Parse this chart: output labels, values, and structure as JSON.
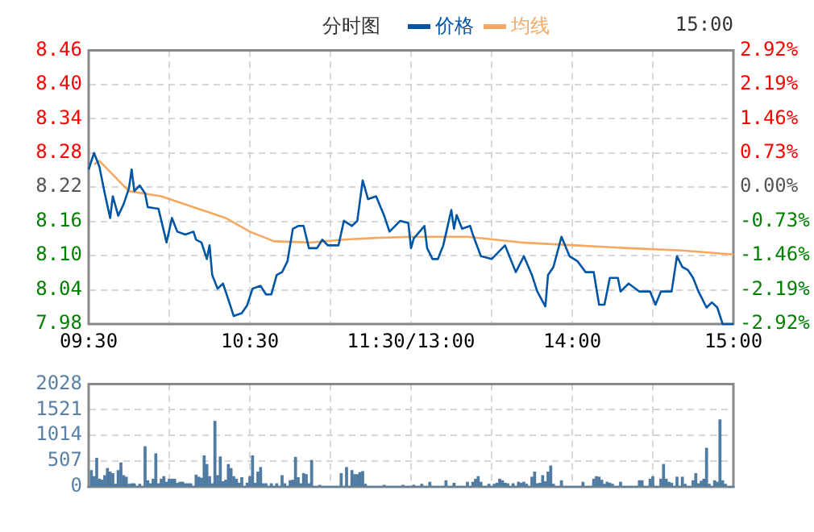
{
  "chart_data": [
    {
      "type": "line",
      "title": "分时图",
      "annotations": [
        "15:00"
      ],
      "legend": "top",
      "grid": true,
      "marker": "none",
      "line_style": "solid",
      "categories": [
        "09:30",
        null,
        null,
        null,
        null,
        null,
        null,
        null,
        null,
        null,
        null,
        null,
        null,
        null,
        null,
        null,
        null,
        null,
        null,
        null,
        null,
        null,
        null,
        null,
        null,
        null,
        null,
        null,
        null,
        null,
        null,
        null,
        null,
        null,
        null,
        null,
        null,
        null,
        null,
        null,
        null,
        null,
        null,
        null,
        null,
        null,
        null,
        null,
        null,
        null,
        null,
        null,
        null,
        null,
        null,
        null,
        null,
        null,
        null,
        null,
        "10:30",
        null,
        null,
        null,
        null,
        null,
        null,
        null,
        null,
        null,
        null,
        null,
        null,
        null,
        null,
        null,
        null,
        null,
        null,
        null,
        null,
        null,
        null,
        null,
        null,
        null,
        null,
        null,
        null,
        null,
        null,
        null,
        null,
        null,
        null,
        null,
        null,
        null,
        null,
        null,
        null,
        null,
        null,
        null,
        null,
        null,
        null,
        null,
        null,
        null,
        null,
        null,
        null,
        null,
        null,
        null,
        null,
        null,
        null,
        null,
        "11:30/13:00",
        null,
        null,
        null,
        null,
        null,
        null,
        null,
        null,
        null,
        null,
        null,
        null,
        null,
        null,
        null,
        null,
        null,
        null,
        null,
        null,
        null,
        null,
        null,
        null,
        null,
        null,
        null,
        null,
        null,
        null,
        null,
        null,
        null,
        null,
        null,
        null,
        null,
        null,
        null,
        null,
        null,
        null,
        null,
        null,
        null,
        null,
        null,
        null,
        null,
        null,
        null,
        null,
        null,
        null,
        null,
        null,
        null,
        null,
        null,
        "14:00",
        null,
        null,
        null,
        null,
        null,
        null,
        null,
        null,
        null,
        null,
        null,
        null,
        null,
        null,
        null,
        null,
        null,
        null,
        null,
        null,
        null,
        null,
        null,
        null,
        null,
        null,
        null,
        null,
        null,
        null,
        null,
        null,
        null,
        null,
        null,
        null,
        null,
        null,
        null,
        null,
        null,
        null,
        null,
        null,
        null,
        null,
        null,
        null,
        null,
        null,
        null,
        null,
        null,
        null,
        null,
        null,
        null,
        null,
        null,
        "15:00"
      ],
      "ylim": [
        7.98,
        8.46
      ],
      "yticks": [
        7.98,
        8.04,
        {
          "value": 8.1,
          "label": "8.10"
        },
        8.16,
        8.22,
        8.28,
        8.34,
        {
          "value": 8.4,
          "label": "8.40"
        },
        8.46
      ],
      "y2lim": [
        -2.92,
        2.92
      ],
      "y2ticks": [
        {
          "value": -2.92,
          "label": "-2.92%"
        },
        {
          "value": -2.19,
          "label": "-2.19%"
        },
        {
          "value": -1.46,
          "label": "-1.46%"
        },
        {
          "value": -0.73,
          "label": "-0.73%"
        },
        {
          "value": 0,
          "label": "0.00%"
        },
        {
          "value": 0.73,
          "label": "0.73%"
        },
        {
          "value": 1.46,
          "label": "1.46%"
        },
        {
          "value": 2.19,
          "label": "2.19%"
        },
        {
          "value": 2.92,
          "label": "2.92%"
        }
      ],
      "series": [
        {
          "name": "价格",
          "color": "#0055a5",
          "values": [
            8.251,
            null,
            8.28,
            null,
            8.256,
            null,
            8.209,
            null,
            8.166,
            8.204,
            null,
            8.17,
            null,
            8.19,
            null,
            8.218,
            8.251,
            8.213,
            null,
            8.223,
            null,
            8.209,
            8.185,
            null,
            null,
            null,
            8.182,
            null,
            null,
            8.123,
            null,
            8.166,
            null,
            8.142,
            null,
            null,
            8.137,
            null,
            null,
            8.142,
            8.128,
            null,
            8.123,
            null,
            8.094,
            8.118,
            8.066,
            null,
            8.042,
            null,
            8.051,
            null,
            8.023,
            null,
            7.994,
            null,
            null,
            7.999,
            null,
            8.013,
            null,
            8.042,
            null,
            null,
            8.047,
            null,
            8.032,
            null,
            8.032,
            null,
            8.066,
            null,
            8.071,
            null,
            8.09,
            null,
            8.147,
            null,
            8.152,
            null,
            8.152,
            null,
            8.113,
            null,
            null,
            8.113,
            null,
            8.128,
            null,
            8.118,
            null,
            null,
            null,
            8.118,
            null,
            8.161,
            null,
            null,
            8.152,
            null,
            8.161,
            null,
            8.232,
            null,
            8.199,
            null,
            null,
            8.204,
            null,
            null,
            8.17,
            null,
            8.142,
            null,
            null,
            null,
            8.161,
            null,
            null,
            8.157,
            8.113,
            8.13,
            null,
            null,
            null,
            8.152,
            8.113,
            null,
            8.094,
            null,
            8.094,
            null,
            8.118,
            null,
            null,
            8.18,
            8.147,
            8.171,
            null,
            8.147,
            null,
            null,
            8.152,
            8.137,
            null,
            null,
            8.099,
            null,
            null,
            null,
            8.094,
            null,
            null,
            null,
            null,
            8.118,
            null,
            null,
            null,
            8.071,
            null,
            null,
            8.099,
            null,
            null,
            8.066,
            null,
            8.037,
            null,
            null,
            8.011,
            8.066,
            null,
            8.08,
            null,
            null,
            8.133,
            null,
            null,
            8.099,
            null,
            null,
            8.09,
            null,
            null,
            8.071,
            null,
            null,
            8.071,
            null,
            8.014,
            null,
            8.014,
            null,
            8.061,
            null,
            null,
            8.061,
            8.037,
            null,
            null,
            8.051,
            null,
            null,
            null,
            8.037,
            null,
            null,
            null,
            8.037,
            null,
            8.014,
            null,
            8.037,
            null,
            null,
            null,
            8.037,
            null,
            8.099,
            null,
            8.08,
            null,
            8.075,
            null,
            8.061,
            null,
            8.037,
            null,
            null,
            8.009,
            null,
            8.018,
            null,
            8.009,
            null,
            7.98,
            null,
            null,
            null,
            7.98
          ]
        },
        {
          "name": "均线",
          "color": "#f5a860",
          "values": [
            null,
            null,
            8.26,
            null,
            8.266,
            null,
            null,
            null,
            null,
            null,
            null,
            null,
            null,
            null,
            null,
            8.213,
            null,
            null,
            null,
            null,
            null,
            null,
            null,
            null,
            null,
            null,
            null,
            8.204,
            null,
            null,
            null,
            null,
            null,
            null,
            null,
            null,
            null,
            null,
            null,
            8.185,
            null,
            null,
            null,
            null,
            null,
            null,
            null,
            null,
            null,
            null,
            null,
            8.166,
            null,
            null,
            null,
            null,
            null,
            null,
            null,
            null,
            8.142,
            null,
            null,
            null,
            null,
            null,
            null,
            null,
            null,
            8.125,
            null,
            null,
            null,
            null,
            null,
            null,
            null,
            null,
            null,
            null,
            null,
            null,
            null,
            8.123,
            null,
            null,
            null,
            null,
            null,
            null,
            null,
            null,
            null,
            null,
            null,
            8.128,
            null,
            null,
            null,
            null,
            null,
            null,
            null,
            null,
            null,
            null,
            null,
            8.131,
            null,
            null,
            null,
            null,
            null,
            null,
            null,
            null,
            null,
            null,
            null,
            null,
            8.133,
            null,
            null,
            null,
            null,
            null,
            null,
            null,
            null,
            null,
            null,
            null,
            null,
            null,
            null,
            null,
            null,
            null,
            null,
            null,
            null,
            8.133,
            null,
            null,
            null,
            null,
            null,
            null,
            null,
            null,
            null,
            null,
            null,
            null,
            null,
            null,
            null,
            null,
            null,
            null,
            null,
            8.123,
            null,
            null,
            null,
            null,
            null,
            null,
            null,
            null,
            null,
            null,
            null,
            null,
            null,
            null,
            null,
            null,
            null,
            null,
            null,
            8.118,
            null,
            null,
            null,
            null,
            null,
            null,
            null,
            null,
            null,
            null,
            null,
            null,
            null,
            null,
            null,
            null,
            null,
            null,
            null,
            8.113,
            null,
            null,
            null,
            null,
            null,
            null,
            null,
            null,
            null,
            null,
            null,
            null,
            null,
            null,
            null,
            null,
            null,
            null,
            null,
            8.109,
            null,
            null,
            null,
            null,
            null,
            null,
            null,
            null,
            null,
            null,
            null,
            null,
            null,
            null,
            null,
            null,
            null,
            null,
            8.102
          ]
        }
      ]
    },
    {
      "type": "bar",
      "grid": true,
      "tick_labels": "y",
      "color": "#4f7ba3",
      "categories": [
        null,
        null,
        null,
        null,
        null,
        null,
        null,
        null,
        null,
        null,
        null,
        null,
        null,
        null,
        null,
        null,
        null,
        null,
        null,
        null,
        null,
        null,
        null,
        null,
        null,
        null,
        null,
        null,
        null,
        null,
        null,
        null,
        null,
        null,
        null,
        null,
        null,
        null,
        null,
        null,
        null,
        null,
        null,
        null,
        null,
        null,
        null,
        null,
        null,
        null,
        null,
        null,
        null,
        null,
        null,
        null,
        null,
        null,
        null,
        null,
        null,
        null,
        null,
        null,
        null,
        null,
        null,
        null,
        null,
        null,
        null,
        null,
        null,
        null,
        null,
        null,
        null,
        null,
        null,
        null,
        null,
        null,
        null,
        null,
        null,
        null,
        null,
        null,
        null,
        null,
        null,
        null,
        null,
        null,
        null,
        null,
        null,
        null,
        null,
        null,
        null,
        null,
        null,
        null,
        null,
        null,
        null,
        null,
        null,
        null,
        null,
        null,
        null,
        null,
        null,
        null,
        null,
        null,
        null,
        null,
        null,
        null,
        null,
        null,
        null,
        null,
        null,
        null,
        null,
        null,
        null,
        null,
        null,
        null,
        null,
        null,
        null,
        null,
        null,
        null,
        null,
        null,
        null,
        null,
        null,
        null,
        null,
        null,
        null,
        null,
        null,
        null,
        null,
        null,
        null,
        null,
        null,
        null,
        null,
        null,
        null,
        null,
        null,
        null,
        null,
        null,
        null,
        null,
        null,
        null,
        null,
        null,
        null,
        null,
        null,
        null,
        null,
        null,
        null,
        null,
        null,
        null,
        null,
        null,
        null,
        null,
        null,
        null,
        null,
        null,
        null,
        null,
        null,
        null,
        null,
        null,
        null,
        null,
        null,
        null,
        null,
        null,
        null,
        null,
        null,
        null,
        null,
        null,
        null,
        null,
        null,
        null,
        null,
        null,
        null,
        null,
        null,
        null,
        null,
        null,
        null,
        null,
        null,
        null,
        null,
        null,
        null,
        null,
        null,
        null,
        null,
        null,
        null,
        null,
        null,
        null,
        null,
        null,
        null,
        null,
        null
      ],
      "ylim": [
        0,
        2028
      ],
      "yticks": [
        0,
        507,
        1014,
        1521,
        2028
      ],
      "values": [
        0,
        320,
        200,
        560,
        150,
        130,
        220,
        360,
        290,
        260,
        50,
        320,
        470,
        220,
        190,
        50,
        60,
        60,
        0,
        50,
        0,
        790,
        120,
        60,
        150,
        650,
        60,
        150,
        200,
        90,
        150,
        150,
        150,
        70,
        90,
        90,
        60,
        60,
        60,
        0,
        230,
        190,
        170,
        610,
        440,
        200,
        60,
        1290,
        220,
        590,
        100,
        130,
        440,
        360,
        200,
        150,
        70,
        180,
        0,
        70,
        200,
        610,
        70,
        290,
        380,
        60,
        60,
        0,
        60,
        0,
        60,
        0,
        220,
        60,
        0,
        120,
        130,
        580,
        180,
        60,
        260,
        240,
        60,
        520,
        0,
        0,
        30,
        0,
        0,
        0,
        0,
        0,
        0,
        0,
        260,
        0,
        380,
        0,
        320,
        240,
        240,
        280,
        300,
        50,
        0,
        0,
        0,
        0,
        0,
        0,
        30,
        0,
        0,
        0,
        0,
        0,
        0,
        30,
        0,
        0,
        0,
        30,
        0,
        0,
        50,
        0,
        0,
        90,
        0,
        0,
        0,
        0,
        0,
        120,
        0,
        0,
        70,
        0,
        0,
        0,
        0,
        90,
        0,
        90,
        150,
        200,
        90,
        0,
        0,
        50,
        0,
        50,
        70,
        150,
        120,
        70,
        60,
        0,
        60,
        0,
        90,
        70,
        90,
        50,
        0,
        190,
        290,
        60,
        70,
        220,
        100,
        290,
        410,
        50,
        0,
        0,
        120,
        0,
        0,
        0,
        0,
        0,
        0,
        0,
        90,
        0,
        0,
        0,
        150,
        200,
        190,
        130,
        50,
        90,
        70,
        50,
        0,
        0,
        90,
        0,
        0,
        0,
        0,
        0,
        0,
        120,
        120,
        0,
        0,
        150,
        200,
        0,
        0,
        150,
        440,
        150,
        90,
        70,
        0,
        190,
        0,
        190,
        50,
        0,
        0,
        120,
        260,
        60,
        110,
        150,
        760,
        50,
        0,
        120,
        90,
        1320,
        120,
        50,
        0,
        0,
        0
      ]
    }
  ]
}
